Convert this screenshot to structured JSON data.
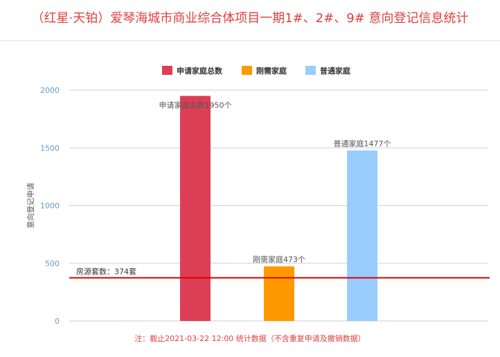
{
  "page": {
    "title": "（红星·天铂）爱琴海城市商业综合体项目一期1#、2#、9# 意向登记信息统计",
    "footer": "注：截止2021-03-22 12:00 统计数据（不含重复申请及撤销数据）"
  },
  "chart_data": {
    "type": "bar",
    "title": "（红星·天铂）爱琴海城市商业综合体项目一期1#、2#、9# 意向登记信息统计",
    "ylabel": "意向登记申请",
    "xlabel": "",
    "ylim": [
      0,
      2000
    ],
    "yticks": [
      0,
      500,
      1000,
      1500,
      2000
    ],
    "grid": true,
    "legend_position": "top",
    "series": [
      {
        "name": "申请家庭总数",
        "value": 1950,
        "color": "#dc3f55",
        "label": "申请家庭总数1950个"
      },
      {
        "name": "刚需家庭",
        "value": 473,
        "color": "#ff9900",
        "label": "刚需家庭473个"
      },
      {
        "name": "普通家庭",
        "value": 1477,
        "color": "#99ccff",
        "label": "普通家庭1477个"
      }
    ],
    "reference_line": {
      "value": 374,
      "label": "房源套数：374套",
      "color": "#dd0000"
    }
  }
}
